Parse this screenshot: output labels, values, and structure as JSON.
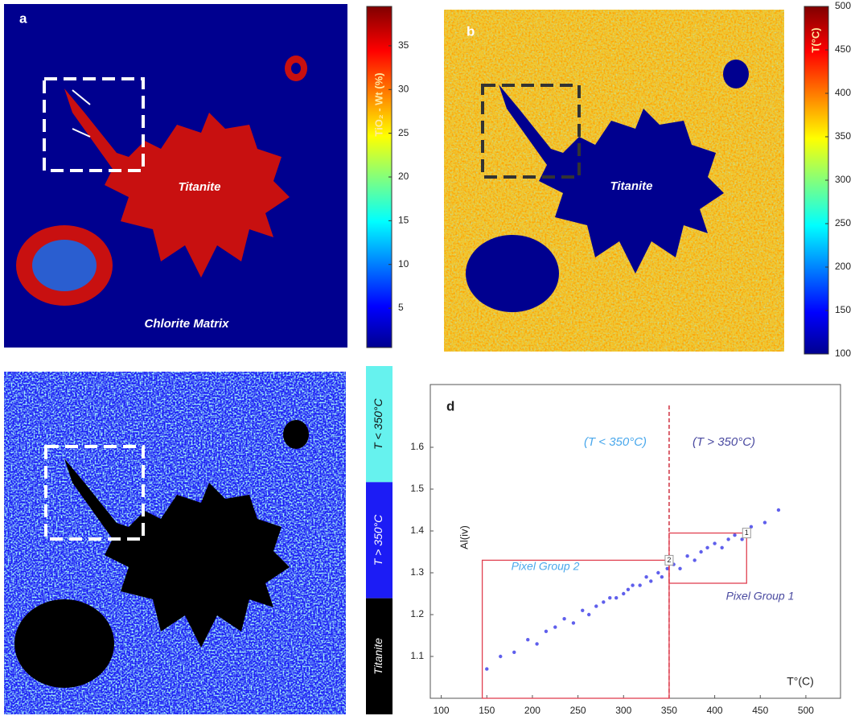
{
  "chart_data": [
    {
      "type": "heatmap",
      "panel": "a",
      "annotations": [
        "Titanite",
        "Chlorite Matrix"
      ],
      "colorbar": {
        "label": "TiO₂ - Wt (%)",
        "clim": [
          0.5,
          39.5
        ],
        "ticks": [
          5,
          10,
          15,
          20,
          25,
          30,
          35
        ],
        "side": "right"
      }
    },
    {
      "type": "heatmap",
      "panel": "b",
      "annotations": [
        "Titanite"
      ],
      "colorbar": {
        "label": "T(°C)",
        "clim": [
          100,
          500
        ],
        "ticks": [
          100,
          150,
          200,
          250,
          300,
          350,
          400,
          450,
          500
        ],
        "side": "right"
      }
    },
    {
      "type": "classmap",
      "classes": [
        {
          "name": "T < 350°C",
          "color": "#66f2ee"
        },
        {
          "name": "T > 350°C",
          "color": "#1c1cf5"
        },
        {
          "name": "Titanite",
          "color": "#000000"
        }
      ]
    },
    {
      "type": "scatter",
      "panel": "d",
      "xlabel": "T°(C)",
      "ylabel": "Al(iv)",
      "xlim": [
        88,
        538
      ],
      "ylim": [
        1.0,
        1.75
      ],
      "xticks": [
        100,
        150,
        200,
        250,
        300,
        350,
        400,
        450,
        500
      ],
      "yticks": [
        1.1,
        1.2,
        1.3,
        1.4,
        1.5,
        1.6
      ],
      "threshold": 350,
      "threshold_color": "#d03040",
      "annotations": [
        "(T < 350°C)",
        "(T > 350°C)"
      ],
      "color": "#2a2ae6",
      "x": [
        150,
        165,
        180,
        195,
        205,
        215,
        225,
        235,
        245,
        255,
        262,
        270,
        278,
        285,
        292,
        300,
        305,
        310,
        318,
        325,
        330,
        338,
        342,
        348,
        355,
        362,
        370,
        378,
        385,
        392,
        400,
        408,
        415,
        422,
        430,
        440,
        455,
        470
      ],
      "values": [
        1.07,
        1.1,
        1.11,
        1.14,
        1.13,
        1.16,
        1.17,
        1.19,
        1.18,
        1.21,
        1.2,
        1.22,
        1.23,
        1.24,
        1.24,
        1.25,
        1.26,
        1.27,
        1.27,
        1.29,
        1.28,
        1.3,
        1.29,
        1.31,
        1.32,
        1.31,
        1.34,
        1.33,
        1.35,
        1.36,
        1.37,
        1.36,
        1.38,
        1.39,
        1.38,
        1.41,
        1.42,
        1.45
      ],
      "regions": [
        {
          "label": "1",
          "name": "Pixel Group 1",
          "xlim": [
            350,
            435
          ],
          "ylim": [
            1.275,
            1.395
          ],
          "color": "#e04050"
        },
        {
          "label": "2",
          "name": "Pixel Group 2",
          "xlim": [
            145,
            350
          ],
          "ylim": [
            1.0,
            1.33
          ],
          "color": "#e04050"
        }
      ]
    }
  ]
}
